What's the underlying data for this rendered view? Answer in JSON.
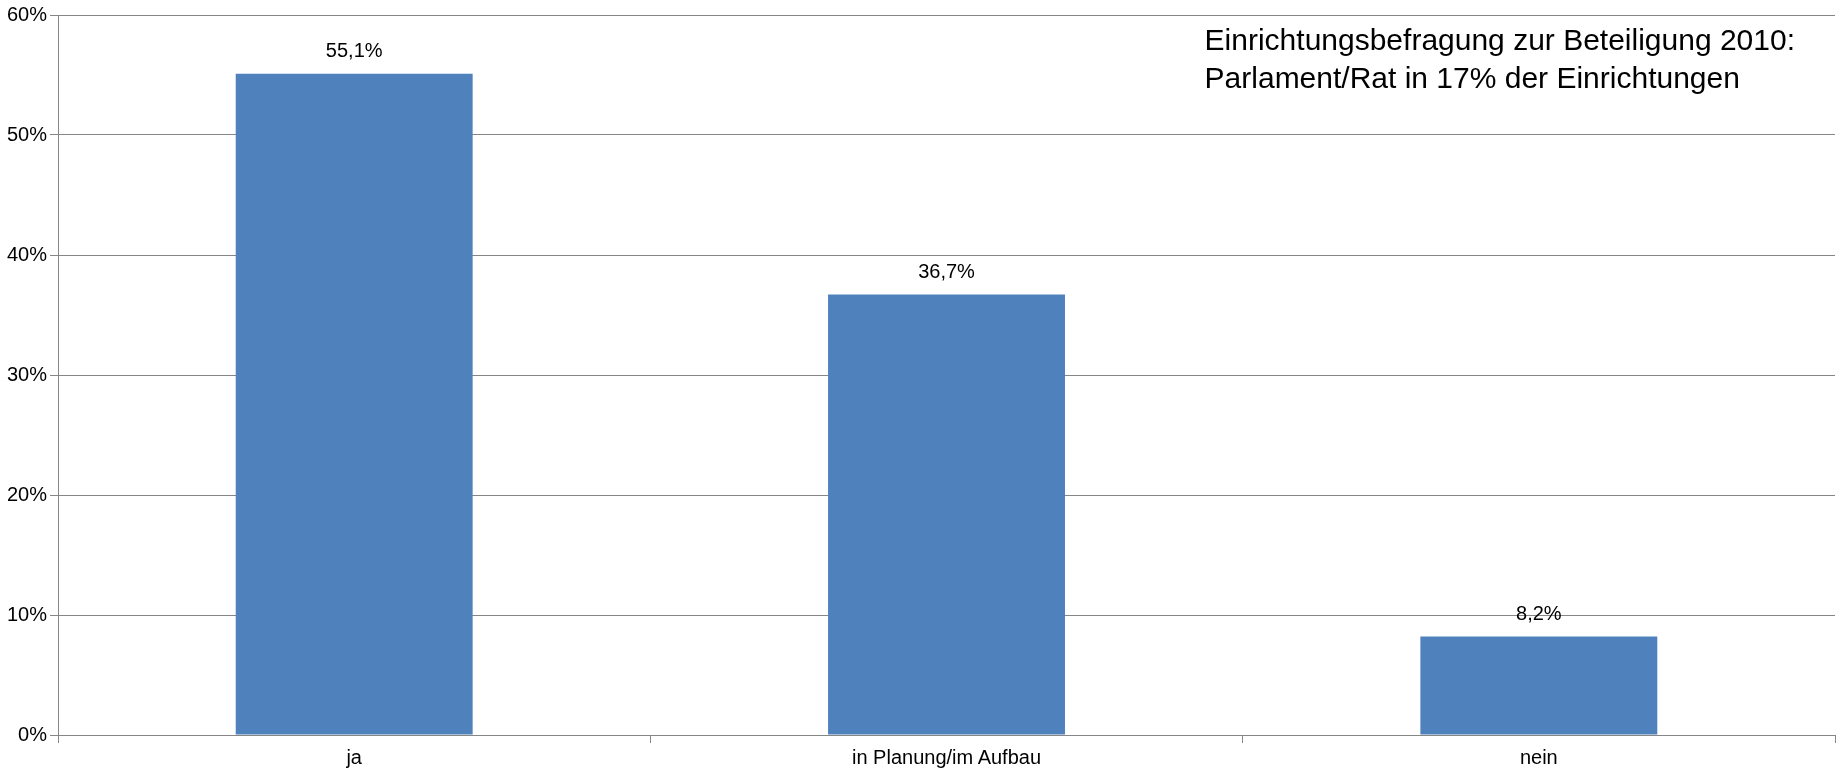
{
  "chart_data": {
    "type": "bar",
    "title": "Einrichtungsbefragung zur Beteiligung 2010: Parlament/Rat in 17% der Einrichtungen",
    "categories": [
      "ja",
      "in Planung/im Aufbau",
      "nein"
    ],
    "values": [
      55.1,
      36.7,
      8.2
    ],
    "value_labels": [
      "55,1%",
      "36,7%",
      "8,2%"
    ],
    "color": "#4f81bd",
    "ylim": [
      0,
      60
    ],
    "yticks": [
      {
        "value": 0,
        "label": "0%"
      },
      {
        "value": 10,
        "label": "10%"
      },
      {
        "value": 20,
        "label": "20%"
      },
      {
        "value": 30,
        "label": "30%"
      },
      {
        "value": 40,
        "label": "40%"
      },
      {
        "value": 50,
        "label": "50%"
      },
      {
        "value": 60,
        "label": "60%"
      }
    ],
    "grid": "y",
    "legend": false
  }
}
